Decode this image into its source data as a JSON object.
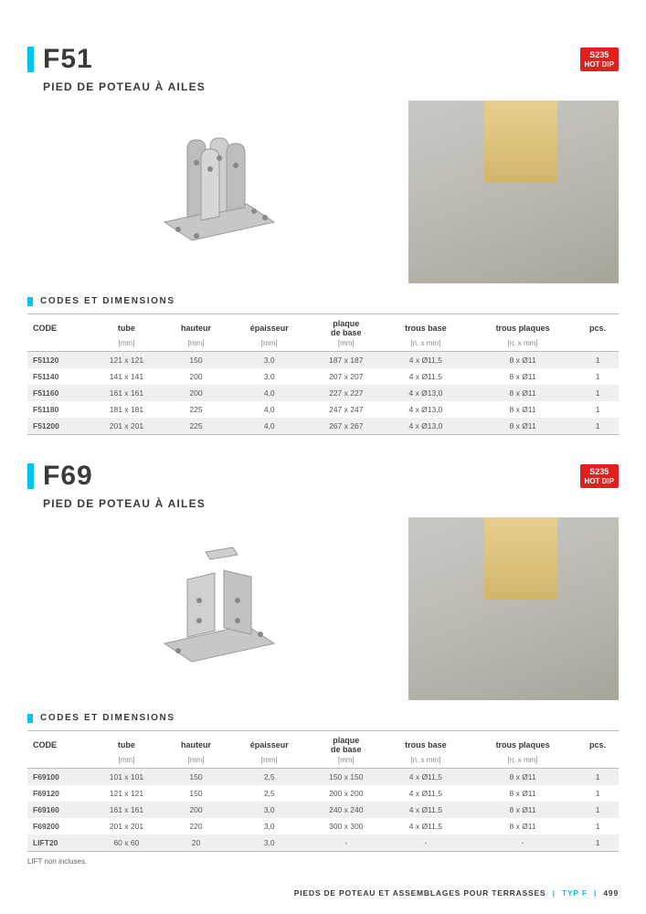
{
  "badge": {
    "line1": "S235",
    "line2": "HOT DIP"
  },
  "products": [
    {
      "code": "F51",
      "subtitle": "PIED DE POTEAU À AILES",
      "table_title": "CODES ET DIMENSIONS",
      "columns": [
        "CODE",
        "tube",
        "hauteur",
        "épaisseur",
        "plaque de base",
        "trous base",
        "trous plaques",
        "pcs."
      ],
      "units": [
        "",
        "[mm]",
        "[mm]",
        "[mm]",
        "[mm]",
        "[n. x mm]",
        "[n. x mm]",
        ""
      ],
      "rows": [
        [
          "F51120",
          "121 x 121",
          "150",
          "3,0",
          "187 x 187",
          "4 x Ø11,5",
          "8 x Ø11",
          "1"
        ],
        [
          "F51140",
          "141 x 141",
          "200",
          "3,0",
          "207 x 207",
          "4 x Ø11,5",
          "8 x Ø11",
          "1"
        ],
        [
          "F51160",
          "161 x 161",
          "200",
          "4,0",
          "227 x 227",
          "4 x Ø13,0",
          "8 x Ø11",
          "1"
        ],
        [
          "F51180",
          "181 x 181",
          "225",
          "4,0",
          "247 x 247",
          "4 x Ø13,0",
          "8 x Ø11",
          "1"
        ],
        [
          "F51200",
          "201 x 201",
          "225",
          "4,0",
          "267 x 267",
          "4 x Ø13,0",
          "8 x Ø11",
          "1"
        ]
      ]
    },
    {
      "code": "F69",
      "subtitle": "PIED DE POTEAU À AILES",
      "table_title": "CODES ET DIMENSIONS",
      "columns": [
        "CODE",
        "tube",
        "hauteur",
        "épaisseur",
        "plaque de base",
        "trous base",
        "trous plaques",
        "pcs."
      ],
      "units": [
        "",
        "[mm]",
        "[mm]",
        "[mm]",
        "[mm]",
        "[n. x mm]",
        "[n. x mm]",
        ""
      ],
      "rows": [
        [
          "F69100",
          "101 x 101",
          "150",
          "2,5",
          "150 x 150",
          "4 x Ø11,5",
          "8 x Ø11",
          "1"
        ],
        [
          "F69120",
          "121 x 121",
          "150",
          "2,5",
          "200 x 200",
          "4 x Ø11,5",
          "8 x Ø11",
          "1"
        ],
        [
          "F69160",
          "161 x 161",
          "200",
          "3,0",
          "240 x 240",
          "4 x Ø11,5",
          "8 x Ø11",
          "1"
        ],
        [
          "F69200",
          "201 x 201",
          "220",
          "3,0",
          "300 x 300",
          "4 x Ø11,5",
          "8 x Ø11",
          "1"
        ],
        [
          "LIFT20",
          "60 x 60",
          "20",
          "3,0",
          "-",
          "-",
          "-",
          "1"
        ]
      ]
    }
  ],
  "footnote": "LIFT non incluses.",
  "footer": {
    "text": "PIEDS DE POTEAU ET ASSEMBLAGES POUR TERRASSES",
    "type": "TYP F",
    "page": "499"
  },
  "colors": {
    "accent": "#00c4ef",
    "badge_bg": "#e02020",
    "row_odd": "#efefef",
    "text": "#3a3a3a"
  }
}
